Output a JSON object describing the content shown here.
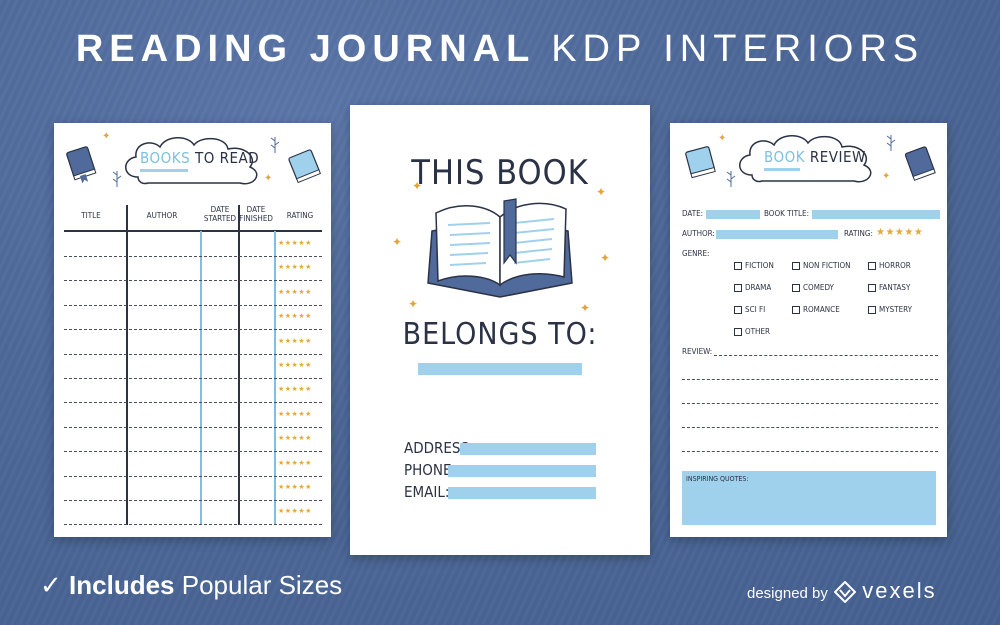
{
  "header": {
    "title_bold": "READING JOURNAL",
    "title_light": "KDP INTERIORS"
  },
  "left_page": {
    "title_part1": "BOOKS",
    "title_part2": "TO READ",
    "columns": [
      "TITLE",
      "AUTHOR",
      "DATE STARTED",
      "DATE FINISHED",
      "RATING"
    ],
    "rating_stars": "★★★★★",
    "row_count": 12
  },
  "center_page": {
    "line1": "THIS BOOK",
    "line2": "BELONGS TO:",
    "fields": [
      "ADDRESS:",
      "PHONE:",
      "EMAIL:"
    ]
  },
  "right_page": {
    "title_part1": "BOOK",
    "title_part2": "REVIEW",
    "date_label": "DATE:",
    "book_title_label": "BOOK TITLE:",
    "author_label": "AUTHOR:",
    "rating_label": "RATING:",
    "rating_stars": "★★★★★",
    "genre_label": "GENRE:",
    "genres": [
      "FICTION",
      "NON FICTION",
      "HORROR",
      "DRAMA",
      "COMEDY",
      "FANTASY",
      "SCI FI",
      "ROMANCE",
      "MYSTERY",
      "OTHER"
    ],
    "review_label": "REVIEW:",
    "quotes_label": "INSPIRING QUOTES:"
  },
  "footer": {
    "check": "✓",
    "includes": "Includes",
    "sizes": "Popular Sizes",
    "designed_by": "designed by",
    "brand": "vexels"
  },
  "colors": {
    "background": "#4f6a9b",
    "accent_blue": "#9fd1ec",
    "ink": "#2b3245",
    "star": "#e7a83a"
  }
}
